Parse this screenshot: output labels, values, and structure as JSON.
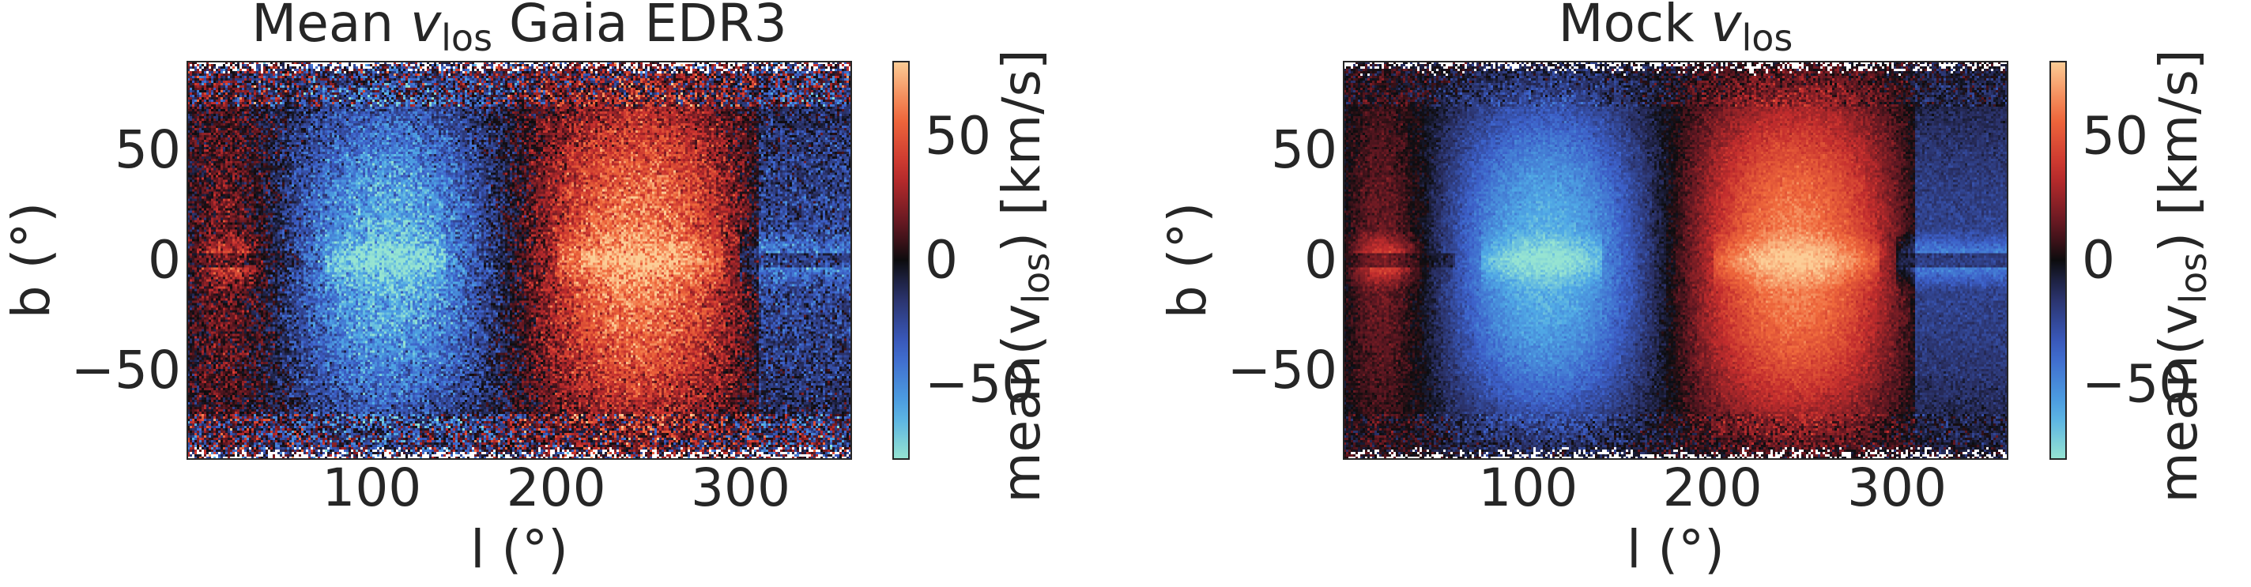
{
  "chart_data": [
    {
      "type": "heatmap",
      "title_main": "Mean ",
      "title_var": "v",
      "title_sub": "los",
      "title_tail": " Gaia EDR3",
      "xlabel": "l (°)",
      "ylabel": "b (°)",
      "xlim": [
        0,
        360
      ],
      "ylim": [
        -90,
        90
      ],
      "xticks": [
        100,
        200,
        300
      ],
      "yticks": [
        50,
        0,
        -50
      ],
      "ytick_labels": [
        "50",
        "0",
        "−50"
      ],
      "colorbar": {
        "label_pre": "mean(v",
        "label_sub": "los",
        "label_post": ") [km/s]",
        "range": [
          -80,
          80
        ],
        "ticks": [
          50,
          0,
          -50
        ],
        "tick_labels": [
          "50",
          "0",
          "−50"
        ]
      },
      "pattern": {
        "negative_center_l": 110,
        "positive_center_l": 245,
        "amplitude_kms": 65,
        "noise_kms": 18,
        "disk_feature": true
      }
    },
    {
      "type": "heatmap",
      "title_main": "Mock ",
      "title_var": "v",
      "title_sub": "los",
      "title_tail": "",
      "xlabel": "l (°)",
      "ylabel": "b (°)",
      "xlim": [
        0,
        360
      ],
      "ylim": [
        -90,
        90
      ],
      "xticks": [
        100,
        200,
        300
      ],
      "yticks": [
        50,
        0,
        -50
      ],
      "ytick_labels": [
        "50",
        "0",
        "−50"
      ],
      "colorbar": {
        "label_pre": "mean(v",
        "label_sub": "los",
        "label_post": ") [km/s]",
        "range": [
          -80,
          80
        ],
        "ticks": [
          50,
          0,
          -50
        ],
        "tick_labels": [
          "50",
          "0",
          "−50"
        ]
      },
      "pattern": {
        "negative_center_l": 110,
        "positive_center_l": 245,
        "amplitude_kms": 65,
        "noise_kms": 6,
        "disk_feature": true
      }
    }
  ]
}
